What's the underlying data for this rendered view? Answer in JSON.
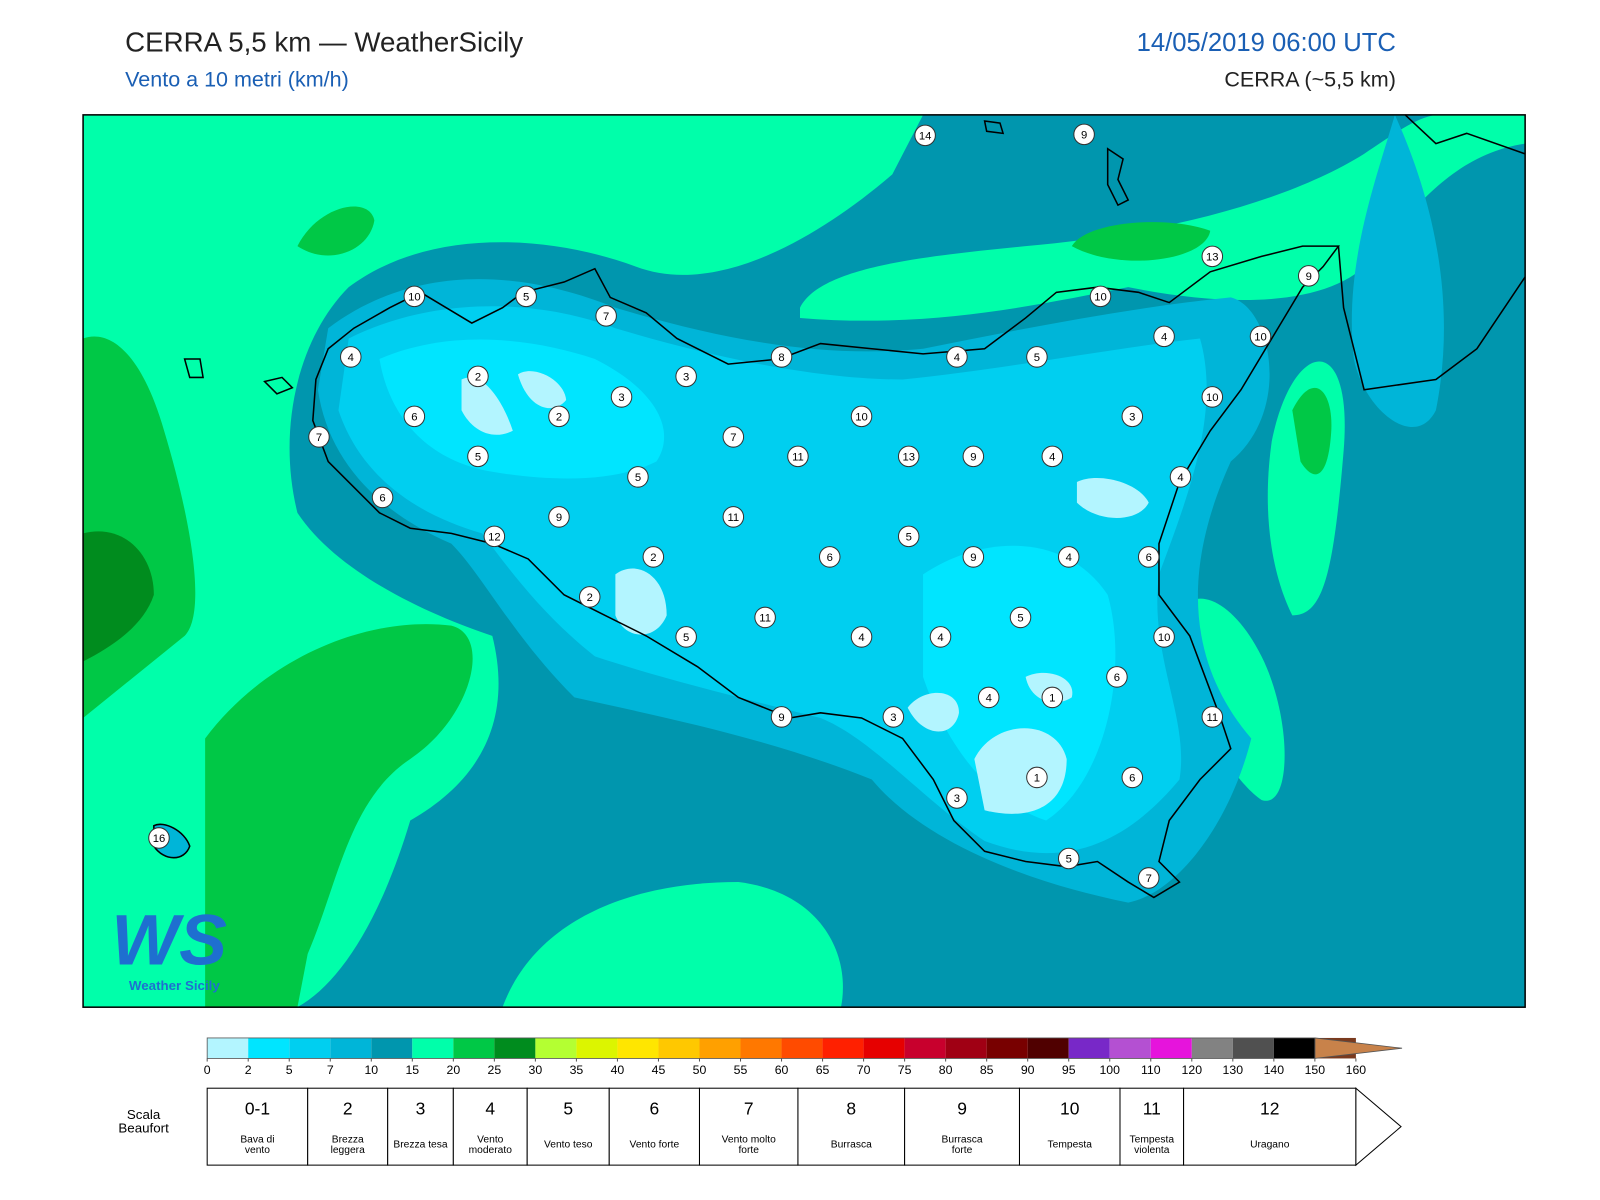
{
  "header": {
    "title": "CERRA 5,5 km — WeatherSicily",
    "subtitle": "Vento a 10 metri (km/h)",
    "datetime": "14/05/2019 06:00 UTC",
    "model": "CERRA (~5,5 km)"
  },
  "logo": {
    "mark": "WS",
    "name": "Weather Sicily"
  },
  "stations": [
    14,
    9,
    13,
    9,
    10,
    5,
    7,
    10,
    4,
    10,
    4,
    8,
    4,
    5,
    2,
    3,
    3,
    10,
    6,
    2,
    10,
    3,
    7,
    7,
    5,
    11,
    13,
    9,
    4,
    5,
    4,
    6,
    9,
    11,
    12,
    5,
    2,
    6,
    9,
    4,
    6,
    2,
    11,
    5,
    5,
    4,
    4,
    10,
    6,
    4,
    1,
    9,
    3,
    11,
    1,
    6,
    3,
    16,
    5,
    7
  ],
  "colorbar": {
    "ticks": [
      0,
      2,
      5,
      7,
      10,
      15,
      20,
      25,
      30,
      35,
      40,
      45,
      50,
      55,
      60,
      65,
      70,
      75,
      80,
      85,
      90,
      95,
      100,
      110,
      120,
      130,
      140,
      150,
      160
    ],
    "colors": [
      "#b3f5ff",
      "#00e5ff",
      "#00cff0",
      "#00b5d8",
      "#0096ae",
      "#00ffaa",
      "#00c846",
      "#008c1e",
      "#b4ff32",
      "#dcf500",
      "#ffe600",
      "#ffc800",
      "#ffa000",
      "#ff7800",
      "#ff4b00",
      "#ff2000",
      "#e60000",
      "#c8002d",
      "#a00014",
      "#780000",
      "#500000",
      "#7828c8",
      "#b450d2",
      "#e614dc",
      "#828282",
      "#505050",
      "#000000",
      "#7a3a1e",
      "#c8824a"
    ]
  },
  "beaufort": {
    "label": "Scala Beaufort",
    "classes": [
      {
        "force": "0-1",
        "desc": "Bava di vento"
      },
      {
        "force": 2,
        "desc": "Brezza leggera"
      },
      {
        "force": 3,
        "desc": "Brezza tesa"
      },
      {
        "force": 4,
        "desc": "Vento moderato"
      },
      {
        "force": 5,
        "desc": "Vento teso"
      },
      {
        "force": 6,
        "desc": "Vento forte"
      },
      {
        "force": 7,
        "desc": "Vento molto forte"
      },
      {
        "force": 8,
        "desc": "Burrasca"
      },
      {
        "force": 9,
        "desc": "Burrasca forte"
      },
      {
        "force": 10,
        "desc": "Tempesta"
      },
      {
        "force": 11,
        "desc": "Tempesta violenta"
      },
      {
        "force": 12,
        "desc": "Uragano"
      }
    ]
  }
}
